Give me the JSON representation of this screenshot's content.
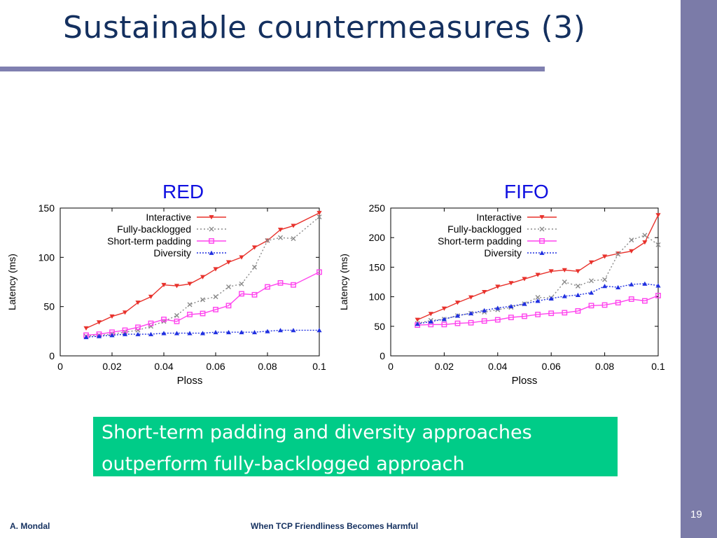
{
  "slide": {
    "title": "Sustainable countermeasures (3)",
    "callout_line1": "Short-term padding and diversity approaches",
    "callout_line2": "outperform fully-backlogged approach",
    "footer_author": "A. Mondal",
    "footer_title": "When TCP Friendliness Becomes Harmful",
    "page_number": "19",
    "colors": {
      "title": "#14305f",
      "sidebar": "#7b7ba8",
      "rule": "#8080b0",
      "callout": "#00cc88",
      "chart_label": "#1010e0"
    }
  },
  "chart_data": [
    {
      "type": "line",
      "label": "RED",
      "xlabel": "Ploss",
      "ylabel": "Latency (ms)",
      "xlim": [
        0,
        0.1
      ],
      "ylim": [
        0,
        150
      ],
      "xticks": [
        "0",
        "0.02",
        "0.04",
        "0.06",
        "0.08",
        "0.1"
      ],
      "yticks": [
        "0",
        "50",
        "100",
        "150"
      ],
      "legend": "top-left",
      "x": [
        0.01,
        0.015,
        0.02,
        0.025,
        0.03,
        0.035,
        0.04,
        0.045,
        0.05,
        0.055,
        0.06,
        0.065,
        0.07,
        0.075,
        0.08,
        0.085,
        0.09,
        0.1
      ],
      "series": [
        {
          "name": "Interactive",
          "color": "#e8322c",
          "marker": "triangle-down",
          "dash": "",
          "values": [
            28,
            34,
            40,
            44,
            54,
            60,
            72,
            71,
            73,
            80,
            88,
            95,
            100,
            110,
            117,
            128,
            132,
            145
          ]
        },
        {
          "name": "Fully-backlogged",
          "color": "#8a8a8a",
          "marker": "x",
          "dash": "2,3",
          "values": [
            20,
            21,
            22,
            24,
            26,
            30,
            35,
            41,
            52,
            57,
            60,
            70,
            73,
            90,
            117,
            120,
            119,
            141
          ]
        },
        {
          "name": "Short-term padding",
          "color": "#ff44ee",
          "marker": "square",
          "dash": "",
          "values": [
            21,
            22,
            24,
            26,
            29,
            33,
            37,
            35,
            42,
            43,
            47,
            51,
            63,
            62,
            70,
            74,
            72,
            85
          ]
        },
        {
          "name": "Diversity",
          "color": "#2030e0",
          "marker": "triangle-up",
          "dash": "2,2",
          "values": [
            19,
            20,
            21,
            22,
            22,
            22,
            23,
            23,
            23,
            23,
            24,
            24,
            24,
            24,
            25,
            26,
            26,
            26
          ]
        }
      ]
    },
    {
      "type": "line",
      "label": "FIFO",
      "xlabel": "Ploss",
      "ylabel": "Latency (ms)",
      "xlim": [
        0,
        0.1
      ],
      "ylim": [
        0,
        250
      ],
      "xticks": [
        "0",
        "0.02",
        "0.04",
        "0.06",
        "0.08",
        "0.1"
      ],
      "yticks": [
        "0",
        "50",
        "100",
        "150",
        "200",
        "250"
      ],
      "legend": "top-left",
      "x": [
        0.01,
        0.015,
        0.02,
        0.025,
        0.03,
        0.035,
        0.04,
        0.045,
        0.05,
        0.055,
        0.06,
        0.065,
        0.07,
        0.075,
        0.08,
        0.085,
        0.09,
        0.095,
        0.1
      ],
      "series": [
        {
          "name": "Interactive",
          "color": "#e8322c",
          "marker": "triangle-down",
          "dash": "",
          "values": [
            61,
            71,
            80,
            90,
            99,
            108,
            117,
            123,
            130,
            137,
            143,
            145,
            143,
            158,
            168,
            173,
            177,
            192,
            238
          ]
        },
        {
          "name": "Fully-backlogged",
          "color": "#8a8a8a",
          "marker": "x",
          "dash": "2,3",
          "values": [
            55,
            60,
            62,
            68,
            72,
            74,
            78,
            82,
            88,
            99,
            98,
            125,
            118,
            127,
            129,
            172,
            196,
            204,
            188
          ]
        },
        {
          "name": "Short-term padding",
          "color": "#ff44ee",
          "marker": "square",
          "dash": "",
          "values": [
            52,
            53,
            53,
            55,
            56,
            59,
            61,
            65,
            67,
            70,
            72,
            73,
            76,
            85,
            86,
            90,
            96,
            93,
            102
          ]
        },
        {
          "name": "Diversity",
          "color": "#2030e0",
          "marker": "triangle-up",
          "dash": "2,2",
          "values": [
            54,
            58,
            62,
            68,
            72,
            77,
            81,
            84,
            88,
            93,
            97,
            101,
            103,
            107,
            118,
            116,
            121,
            122,
            119
          ]
        }
      ]
    }
  ]
}
